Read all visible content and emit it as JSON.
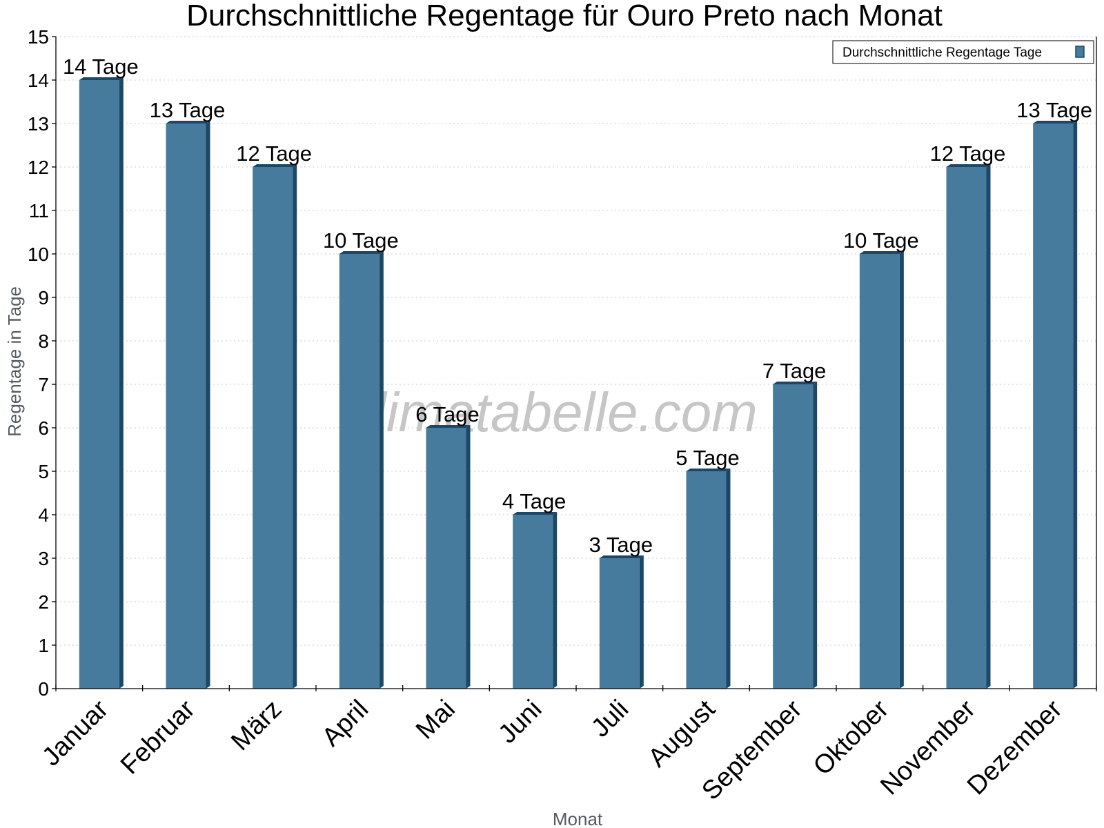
{
  "chart_data": {
    "type": "bar",
    "title": "Durchschnittliche Regentage für Ouro Preto nach Monat",
    "xlabel": "Monat",
    "ylabel": "Regentage in Tage",
    "ylim": [
      0,
      15
    ],
    "yticks": [
      0,
      1,
      2,
      3,
      4,
      5,
      6,
      7,
      8,
      9,
      10,
      11,
      12,
      13,
      14,
      15
    ],
    "grid": true,
    "legend_position": "top-right",
    "categories": [
      "Januar",
      "Februar",
      "März",
      "April",
      "Mai",
      "Juni",
      "Juli",
      "August",
      "September",
      "Oktober",
      "November",
      "Dezember"
    ],
    "series": [
      {
        "name": "Durchschnittliche Regentage Tage",
        "values": [
          14,
          13,
          12,
          10,
          6,
          4,
          3,
          5,
          7,
          10,
          12,
          13
        ],
        "labels": [
          "14 Tage",
          "13 Tage",
          "12 Tage",
          "10 Tage",
          "6 Tage",
          "4 Tage",
          "3 Tage",
          "5 Tage",
          "7 Tage",
          "10 Tage",
          "12 Tage",
          "13 Tage"
        ],
        "color": "#467b9d",
        "edge_color": "#1b4868"
      }
    ]
  },
  "watermark": "klimatabelle.com"
}
